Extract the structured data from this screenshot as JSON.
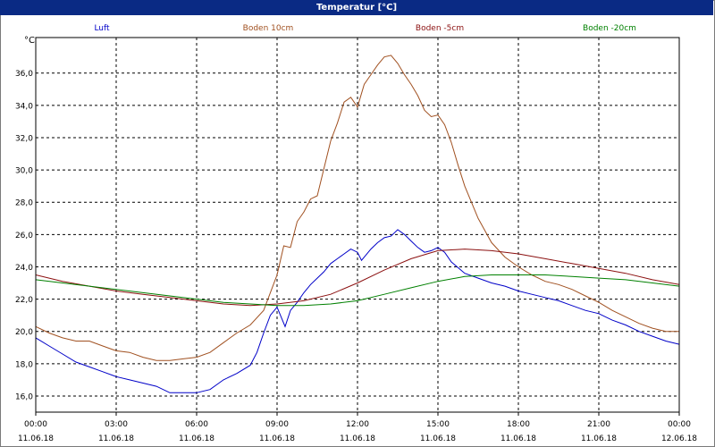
{
  "window": {
    "title": "Temperatur [°C]"
  },
  "chart_data": {
    "type": "line",
    "title": "Temperatur [°C]",
    "ylabel": "°C",
    "xlabel": "",
    "ylim": [
      15,
      38.2
    ],
    "xlim": [
      0,
      24
    ],
    "grid": true,
    "legend_position": "top",
    "y_ticks": [
      "16,0",
      "18,0",
      "20,0",
      "22,0",
      "24,0",
      "26,0",
      "28,0",
      "30,0",
      "32,0",
      "34,0",
      "36,0"
    ],
    "x_ticks": [
      {
        "time": "00:00",
        "date": "11.06.18"
      },
      {
        "time": "03:00",
        "date": "11.06.18"
      },
      {
        "time": "06:00",
        "date": "11.06.18"
      },
      {
        "time": "09:00",
        "date": "11.06.18"
      },
      {
        "time": "12:00",
        "date": "11.06.18"
      },
      {
        "time": "15:00",
        "date": "11.06.18"
      },
      {
        "time": "18:00",
        "date": "11.06.18"
      },
      {
        "time": "21:00",
        "date": "11.06.18"
      },
      {
        "time": "00:00",
        "date": "12.06.18"
      }
    ],
    "series": [
      {
        "name": "Luft",
        "color": "#0000c8",
        "x": [
          0,
          0.5,
          1,
          1.5,
          2,
          2.5,
          3,
          3.5,
          4,
          4.5,
          5,
          5.5,
          6,
          6.5,
          7,
          7.5,
          8,
          8.25,
          8.5,
          8.75,
          9,
          9.15,
          9.3,
          9.5,
          9.75,
          10,
          10.25,
          10.5,
          10.75,
          11,
          11.25,
          11.5,
          11.75,
          12,
          12.15,
          12.3,
          12.5,
          12.75,
          13,
          13.25,
          13.5,
          13.75,
          14,
          14.25,
          14.5,
          14.75,
          15,
          15.25,
          15.5,
          16,
          16.5,
          17,
          17.5,
          18,
          18.5,
          19,
          19.5,
          20,
          20.5,
          21,
          21.5,
          22,
          22.5,
          23,
          23.5,
          24
        ],
        "y": [
          19.6,
          19.1,
          18.6,
          18.1,
          17.8,
          17.5,
          17.2,
          17.0,
          16.8,
          16.6,
          16.2,
          16.2,
          16.2,
          16.4,
          17.0,
          17.4,
          17.9,
          18.7,
          19.9,
          21.0,
          21.5,
          20.9,
          20.3,
          21.3,
          21.8,
          22.4,
          22.9,
          23.3,
          23.7,
          24.2,
          24.5,
          24.8,
          25.1,
          24.9,
          24.4,
          24.7,
          25.1,
          25.5,
          25.8,
          25.9,
          26.3,
          26.0,
          25.6,
          25.2,
          24.9,
          25.0,
          25.2,
          24.9,
          24.3,
          23.6,
          23.3,
          23.0,
          22.8,
          22.5,
          22.3,
          22.1,
          21.9,
          21.6,
          21.3,
          21.1,
          20.7,
          20.4,
          20.0,
          19.7,
          19.4,
          19.2
        ]
      },
      {
        "name": "Boden 10cm",
        "color": "#a05020",
        "x": [
          0,
          0.5,
          1,
          1.5,
          2,
          2.5,
          3,
          3.5,
          4,
          4.5,
          5,
          5.5,
          6,
          6.5,
          7,
          7.5,
          8,
          8.5,
          9,
          9.25,
          9.5,
          9.75,
          10,
          10.25,
          10.5,
          10.75,
          11,
          11.25,
          11.5,
          11.75,
          12,
          12.25,
          12.5,
          12.75,
          13,
          13.25,
          13.5,
          13.75,
          14,
          14.25,
          14.5,
          14.75,
          15,
          15.25,
          15.5,
          15.75,
          16,
          16.5,
          17,
          17.5,
          18,
          18.5,
          19,
          19.5,
          20,
          20.5,
          21,
          21.5,
          22,
          22.5,
          23,
          23.5,
          24
        ],
        "y": [
          20.3,
          19.9,
          19.6,
          19.4,
          19.4,
          19.1,
          18.8,
          18.7,
          18.4,
          18.2,
          18.2,
          18.3,
          18.4,
          18.7,
          19.3,
          19.9,
          20.4,
          21.3,
          23.5,
          25.3,
          25.2,
          26.8,
          27.4,
          28.2,
          28.4,
          30.1,
          31.8,
          32.9,
          34.2,
          34.5,
          33.9,
          35.3,
          35.9,
          36.5,
          37.0,
          37.1,
          36.6,
          35.9,
          35.3,
          34.6,
          33.7,
          33.3,
          33.4,
          32.8,
          31.7,
          30.3,
          29.0,
          27.0,
          25.5,
          24.6,
          24.0,
          23.5,
          23.1,
          22.9,
          22.6,
          22.2,
          21.8,
          21.3,
          20.9,
          20.5,
          20.2,
          20.0,
          20.0
        ]
      },
      {
        "name": "Boden -5cm",
        "color": "#8b1010",
        "x": [
          0,
          1,
          2,
          3,
          4,
          5,
          6,
          7,
          8,
          9,
          10,
          11,
          12,
          13,
          14,
          15,
          16,
          17,
          18,
          19,
          20,
          21,
          22,
          23,
          24
        ],
        "y": [
          23.5,
          23.1,
          22.8,
          22.5,
          22.3,
          22.1,
          21.9,
          21.7,
          21.6,
          21.7,
          21.9,
          22.3,
          23.0,
          23.8,
          24.5,
          25.0,
          25.1,
          25.0,
          24.8,
          24.5,
          24.2,
          23.9,
          23.6,
          23.2,
          22.9
        ]
      },
      {
        "name": "Boden -20cm",
        "color": "#008000",
        "x": [
          0,
          1,
          2,
          3,
          4,
          5,
          6,
          7,
          8,
          9,
          10,
          11,
          12,
          13,
          14,
          15,
          16,
          17,
          18,
          19,
          20,
          21,
          22,
          23,
          24
        ],
        "y": [
          23.2,
          23.0,
          22.8,
          22.6,
          22.4,
          22.2,
          22.0,
          21.8,
          21.7,
          21.6,
          21.6,
          21.7,
          21.9,
          22.3,
          22.7,
          23.1,
          23.4,
          23.5,
          23.5,
          23.5,
          23.4,
          23.3,
          23.2,
          23.0,
          22.8
        ]
      }
    ]
  }
}
